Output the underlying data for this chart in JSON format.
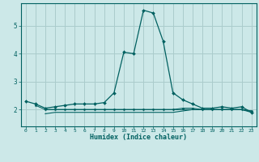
{
  "title": "",
  "xlabel": "Humidex (Indice chaleur)",
  "ylabel": "",
  "background_color": "#cce8e8",
  "grid_color": "#aacccc",
  "line_color": "#006060",
  "xlim": [
    -0.5,
    23.5
  ],
  "ylim": [
    1.4,
    5.8
  ],
  "yticks": [
    2,
    3,
    4,
    5
  ],
  "xticks": [
    0,
    1,
    2,
    3,
    4,
    5,
    6,
    7,
    8,
    9,
    10,
    11,
    12,
    13,
    14,
    15,
    16,
    17,
    18,
    19,
    20,
    21,
    22,
    23
  ],
  "main_x": [
    0,
    1,
    2,
    3,
    4,
    5,
    6,
    7,
    8,
    9,
    10,
    11,
    12,
    13,
    14,
    15,
    16,
    17,
    18,
    19,
    20,
    21,
    22,
    23
  ],
  "main_y": [
    2.3,
    2.2,
    2.05,
    2.1,
    2.15,
    2.2,
    2.2,
    2.2,
    2.25,
    2.6,
    4.05,
    4.0,
    5.55,
    5.45,
    4.45,
    2.6,
    2.35,
    2.2,
    2.05,
    2.05,
    2.1,
    2.05,
    2.1,
    1.9
  ],
  "line2_x": [
    2,
    3,
    4,
    5,
    6,
    7,
    8,
    9,
    10,
    11,
    12,
    13,
    14,
    15,
    16,
    17,
    18,
    19,
    20,
    21,
    22,
    23
  ],
  "line2_y": [
    1.85,
    1.9,
    1.9,
    1.9,
    1.9,
    1.9,
    1.9,
    1.9,
    1.9,
    1.9,
    1.9,
    1.9,
    1.9,
    1.9,
    1.95,
    2.0,
    2.0,
    2.0,
    2.0,
    2.0,
    2.0,
    1.9
  ],
  "line3_x": [
    2,
    3,
    4,
    5,
    6,
    7,
    8,
    9,
    10,
    11,
    12,
    13,
    14,
    15,
    16,
    17,
    18,
    19,
    20,
    21,
    22,
    23
  ],
  "line3_y": [
    2.0,
    2.0,
    2.0,
    2.0,
    2.0,
    2.0,
    2.0,
    2.0,
    2.0,
    2.0,
    2.0,
    2.0,
    2.0,
    2.0,
    2.0,
    2.0,
    2.0,
    2.0,
    2.0,
    2.0,
    2.0,
    1.95
  ],
  "line4_x": [
    1,
    2,
    3,
    4,
    5,
    6,
    7,
    8,
    9,
    10,
    11,
    12,
    13,
    14,
    15,
    16,
    17,
    18,
    19,
    20,
    21,
    22,
    23
  ],
  "line4_y": [
    2.15,
    2.0,
    2.0,
    2.0,
    2.0,
    2.0,
    2.0,
    2.0,
    2.0,
    2.0,
    2.0,
    2.0,
    2.0,
    2.0,
    2.0,
    2.05,
    2.05,
    2.0,
    2.0,
    2.0,
    2.0,
    2.0,
    1.95
  ]
}
